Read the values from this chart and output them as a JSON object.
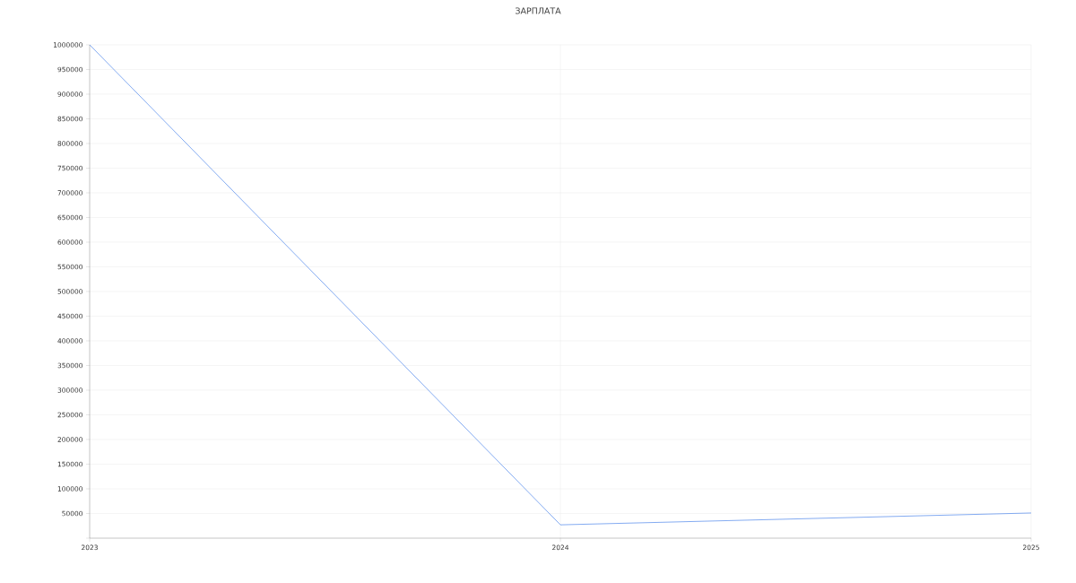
{
  "chart_data": {
    "type": "line",
    "title": "ЗАРПЛАТА",
    "x": [
      2023,
      2024,
      2025
    ],
    "series": [
      {
        "color": "#6495ed",
        "values": [
          1000000,
          27000,
          51000
        ]
      }
    ],
    "xlim": [
      2023,
      2025
    ],
    "xticks": [
      2023,
      2024,
      2025
    ],
    "ylim": [
      0,
      1000000
    ],
    "yticks": [
      {
        "value": 0,
        "label": null
      },
      50000,
      100000,
      150000,
      200000,
      250000,
      300000,
      350000,
      400000,
      450000,
      500000,
      550000,
      600000,
      650000,
      700000,
      750000,
      800000,
      850000,
      900000,
      950000,
      1000000
    ],
    "grid": true,
    "marker": "none",
    "line_style": "solid"
  }
}
